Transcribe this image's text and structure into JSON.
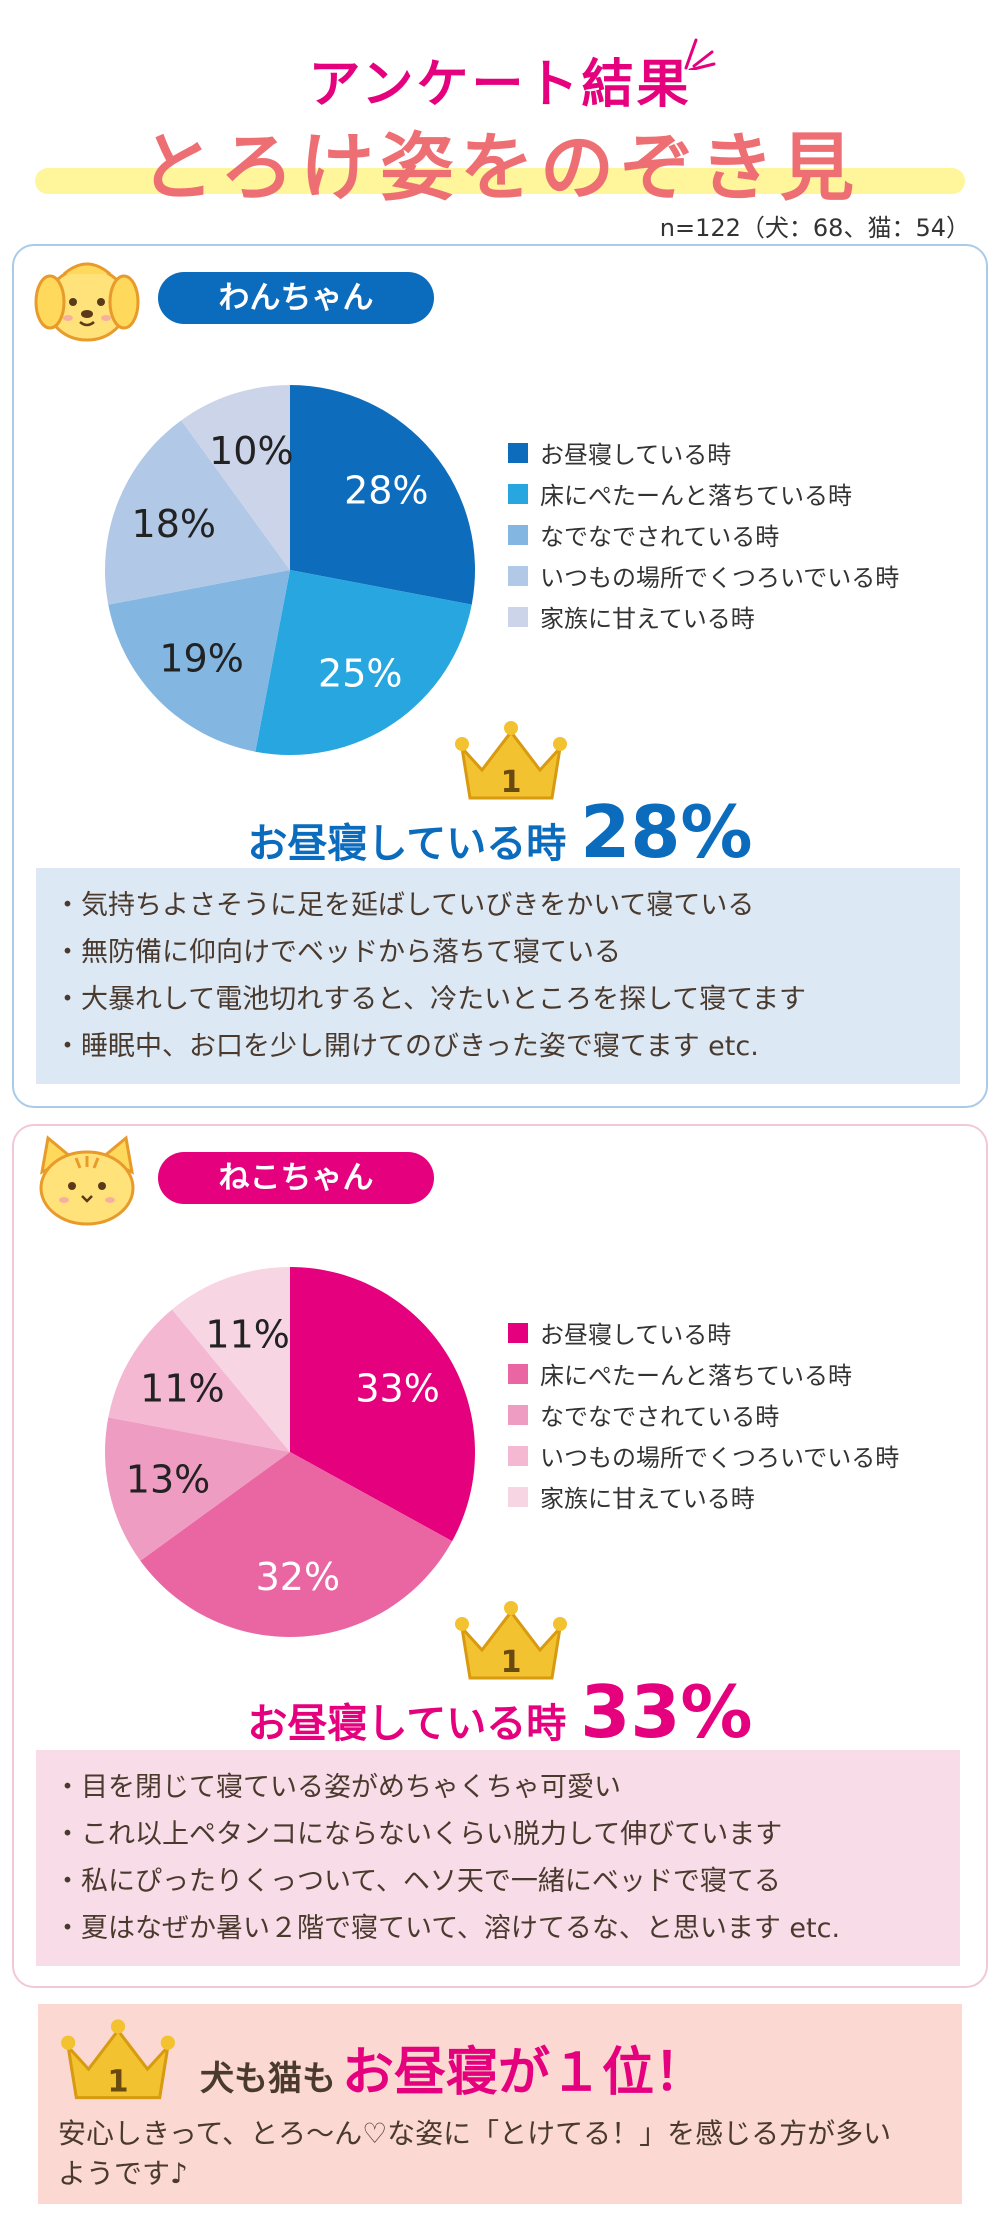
{
  "header": {
    "title": "アンケート結果",
    "subtitle": "とろけ姿をのぞき見",
    "sample_note": "n=122（犬：68、猫：54）"
  },
  "colors": {
    "dog_accent": "#0b6bbd",
    "cat_accent": "#e5007e",
    "title_pink": "#e5007e",
    "title_coral": "#ee6f73"
  },
  "chart_data": [
    {
      "type": "pie",
      "label": "わんちゃん",
      "categories": [
        "お昼寝している時",
        "床にぺたーんと落ちている時",
        "なでなでされている時",
        "いつもの場所でくつろいでいる時",
        "家族に甘えている時"
      ],
      "values": [
        28,
        25,
        19,
        18,
        10
      ],
      "value_labels": [
        "28%",
        "25%",
        "19%",
        "18%",
        "10%"
      ],
      "colors": [
        "#0e6cbd",
        "#28a6e0",
        "#84b6e2",
        "#b1c9e6",
        "#ccd4ea"
      ],
      "label_colors": [
        "#ffffff",
        "#ffffff",
        "#222222",
        "#222222",
        "#222222"
      ],
      "legend_position": "right"
    },
    {
      "type": "pie",
      "label": "ねこちゃん",
      "categories": [
        "お昼寝している時",
        "床にぺたーんと落ちている時",
        "なでなでされている時",
        "いつもの場所でくつろいでいる時",
        "家族に甘えている時"
      ],
      "values": [
        33,
        32,
        13,
        11,
        11
      ],
      "value_labels": [
        "33%",
        "32%",
        "13%",
        "11%",
        "11%"
      ],
      "colors": [
        "#e5007e",
        "#ea66a2",
        "#ef9cc2",
        "#f4b8d2",
        "#f8d5e2"
      ],
      "label_colors": [
        "#ffffff",
        "#ffffff",
        "#222222",
        "#222222",
        "#222222"
      ],
      "legend_position": "right"
    }
  ],
  "dog": {
    "badge": "わんちゃん",
    "rank": "1",
    "winner_label": "お昼寝している時",
    "winner_pct": "28%",
    "comments": [
      "・気持ちよさそうに足を延ばしていびきをかいて寝ている",
      "・無防備に仰向けでベッドから落ちて寝ている",
      "・大暴れして電池切れすると、冷たいところを探して寝てます",
      "・睡眠中、お口を少し開けてのびきった姿で寝てます etc."
    ]
  },
  "cat": {
    "badge": "ねこちゃん",
    "rank": "1",
    "winner_label": "お昼寝している時",
    "winner_pct": "33%",
    "comments": [
      "・目を閉じて寝ている姿がめちゃくちゃ可愛い",
      "・これ以上ペタンコにならないくらい脱力して伸びています",
      "・私にぴったりくっついて、ヘソ天で一緒にベッドで寝てる",
      "・夏はなぜか暑い２階で寝ていて、溶けてるな、と思います etc."
    ]
  },
  "summary": {
    "rank": "1",
    "lead": "犬も猫も",
    "highlight": "お昼寝が１位！",
    "text": "安心しきって、とろ〜ん♡な姿に「とけてる！」を感じる方が多いようです♪"
  }
}
